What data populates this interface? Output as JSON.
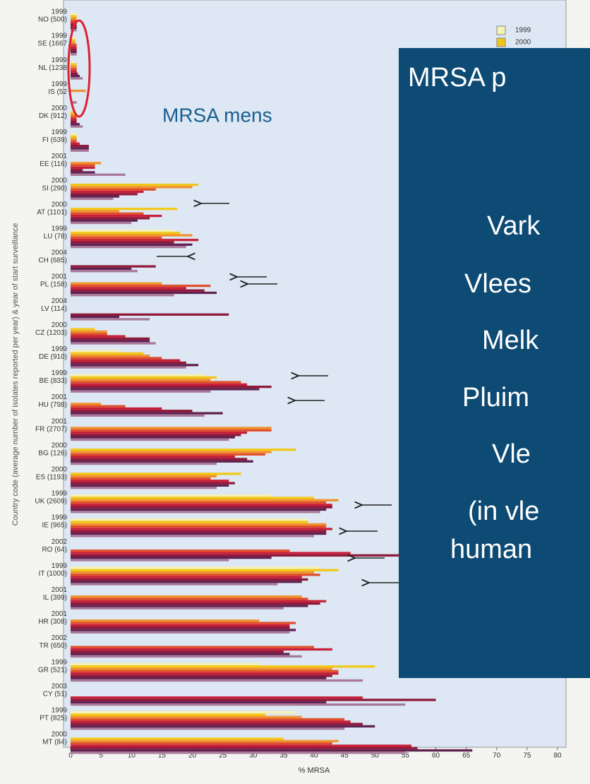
{
  "chart_data": {
    "type": "bar",
    "orientation": "horizontal",
    "x_label": "% MRSA",
    "y_label": "Country code (average number of isolates reported per year) & year of start surveillance",
    "annotation": "MRSA mens",
    "start_years": [
      "1999",
      "1999",
      "1999",
      "1999",
      "2000",
      "1999",
      "2001",
      "2000",
      "2000",
      "1999",
      "2004",
      "2001",
      "2004",
      "2000",
      "1999",
      "1999",
      "2001",
      "2001",
      "2000",
      "2000",
      "1999",
      "1999",
      "2002",
      "1999",
      "2001",
      "2001",
      "2002",
      "1999",
      "2003",
      "1999",
      "2000"
    ],
    "categories": [
      "NO (500)",
      "SE (1667",
      "NL (1238",
      "IS (52",
      "DK (912)",
      "FI (639)",
      "EE (116)",
      "SI (290)",
      "AT (1101)",
      "LU (78)",
      "CH (685)",
      "PL (158)",
      "LV (114)",
      "CZ (1203)",
      "DE (910)",
      "BE (833)",
      "HU (798)",
      "FR (2707)",
      "BG (126)",
      "ES (1193)",
      "UK (2609)",
      "IE (965)",
      "RO (64)",
      "IT (1000)",
      "IL (399)",
      "HR (308)",
      "TR (650)",
      "GR (521)",
      "CY (51)",
      "PT (825)",
      "MT (84)"
    ],
    "series": [
      {
        "name": "1999",
        "color": "#f6f1b4",
        "values": [
          1,
          0.7,
          0.5,
          0,
          null,
          1,
          null,
          null,
          null,
          17,
          null,
          null,
          null,
          null,
          8,
          22,
          null,
          null,
          null,
          null,
          33,
          39,
          null,
          41,
          null,
          null,
          null,
          31,
          null,
          37,
          null
        ]
      },
      {
        "name": "2000",
        "color": "#f2c818",
        "values": [
          1,
          0.8,
          1,
          0,
          0.5,
          1,
          null,
          21,
          17.5,
          18,
          null,
          null,
          null,
          4,
          12,
          24,
          null,
          null,
          37,
          28,
          40,
          39,
          null,
          44,
          null,
          null,
          null,
          50,
          null,
          32,
          35
        ]
      },
      {
        "color": "#f0922e",
        "values": [
          1,
          0.8,
          1,
          2.5,
          1,
          1,
          5,
          20,
          8,
          20,
          null,
          15,
          null,
          6,
          13,
          23,
          5,
          33,
          33,
          24,
          44,
          42,
          null,
          40,
          38,
          31,
          null,
          43,
          null,
          38,
          44
        ]
      },
      {
        "color": "#e0502c",
        "values": [
          1,
          1,
          1,
          0,
          1,
          1,
          4,
          14,
          12,
          15,
          null,
          23,
          null,
          6,
          15,
          28,
          9,
          33,
          32,
          23,
          42,
          42,
          36,
          41,
          39,
          37,
          40,
          44,
          null,
          45,
          43
        ]
      },
      {
        "color": "#c8203a",
        "values": [
          1,
          1,
          1,
          0,
          1,
          1.5,
          4,
          12,
          15,
          21,
          null,
          19,
          null,
          9,
          18,
          29,
          15,
          29,
          27,
          26,
          43,
          43,
          46,
          38,
          42,
          36,
          43,
          44,
          48,
          46,
          56
        ]
      },
      {
        "color": "#901838",
        "values": [
          1,
          1,
          1.2,
          0,
          1,
          3,
          2,
          11,
          13,
          17,
          14,
          22,
          26,
          13,
          19,
          33,
          20,
          28,
          29,
          27,
          43,
          42,
          57,
          39,
          41,
          36,
          35,
          43,
          60,
          48,
          57
        ]
      },
      {
        "color": "#602050",
        "values": [
          1,
          1,
          1.5,
          0,
          1.5,
          3,
          4,
          8,
          11,
          20,
          10,
          24,
          8,
          13,
          21,
          31,
          25,
          27,
          30,
          26,
          42,
          42,
          33,
          38,
          39,
          37,
          36,
          42,
          42,
          50,
          66
        ]
      },
      {
        "color": "#a87898",
        "values": [
          1,
          1,
          2,
          1,
          2,
          3,
          9,
          7,
          10,
          19,
          11,
          17,
          13,
          14,
          19,
          23,
          22,
          26,
          24,
          24,
          41,
          40,
          26,
          34,
          35,
          36,
          38,
          48,
          55,
          45,
          55
        ]
      }
    ],
    "xlim": [
      0,
      80
    ],
    "xticks": [
      0,
      5,
      10,
      15,
      20,
      25,
      30,
      35,
      40,
      45,
      50,
      55,
      60,
      65,
      70,
      75,
      80
    ]
  },
  "overlay": {
    "title": "MRSA p",
    "lines": [
      "Vark",
      "Vlees",
      "Melk",
      "Pluim",
      "Vle",
      "(in vle",
      "human"
    ]
  }
}
